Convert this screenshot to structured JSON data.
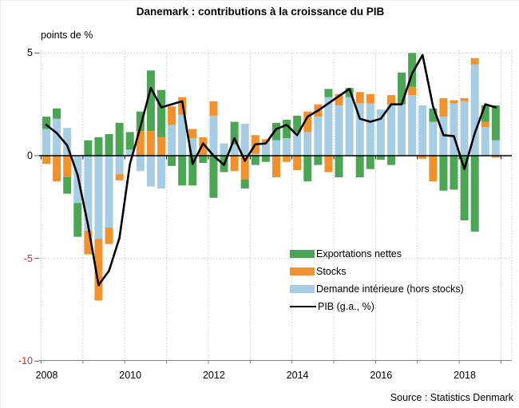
{
  "chart_data": {
    "type": "bar",
    "title": "Danemark : contributions à la croissance du PIB",
    "ylabel": "points de %",
    "source": "Source : Statistics Denmark",
    "frequency": "quarterly",
    "quarters_start": "2008Q1",
    "quarters_end": "2018Q4",
    "x_ticks": [
      "2008",
      "2010",
      "2012",
      "2014",
      "2016",
      "2018"
    ],
    "y_ticks": [
      {
        "label": "5",
        "v": 5,
        "color": "#000000"
      },
      {
        "label": "0",
        "v": 0,
        "color": "#000000"
      },
      {
        "label": "-5",
        "v": -5,
        "color": "#E0282E"
      },
      {
        "label": "-10",
        "v": -10,
        "color": "#E0282E"
      }
    ],
    "ylim": [
      -9.95,
      5.15
    ],
    "grid": "dotted light-gray horizontal at +5/-5 and vertical at each year boundary",
    "legend_position": "inside, lower middle",
    "style": {
      "grid_color": "#c9c9c9",
      "zero_line_color": "#000000",
      "bottom_axis_color": "#7f7f7f",
      "negative_tick_label_color": "#E0282E"
    },
    "series": [
      {
        "name": "Exportations nettes",
        "color": "#4BA554",
        "values": [
          0.6,
          0.5,
          -0.8,
          -1.65,
          0.75,
          0.9,
          1.05,
          1.6,
          0.85,
          0.95,
          2.95,
          2.3,
          -0.5,
          -1.45,
          -1.45,
          -0.35,
          -2.05,
          -0.8,
          1.1,
          -0.45,
          -0.45,
          -0.3,
          0.85,
          0.9,
          0.8,
          -1.25,
          -0.45,
          0.4,
          -1.05,
          0.45,
          -1.05,
          -0.65,
          -0.2,
          -0.45,
          1.55,
          1.65,
          0,
          0.65,
          -1.7,
          -1.65,
          -3.15,
          -3.7,
          0.8,
          1.7
        ]
      },
      {
        "name": "Stocks",
        "color": "#F0912D",
        "values": [
          -0.4,
          -1.25,
          -1.05,
          0,
          -1.15,
          -3,
          -0.8,
          -0.3,
          0,
          1.2,
          1.2,
          0.9,
          0.9,
          0.85,
          0.45,
          0.9,
          0.7,
          0,
          -0.75,
          -1.15,
          0.9,
          0.15,
          -1.05,
          -0.3,
          -0.7,
          1,
          0.6,
          -0.8,
          0.55,
          0,
          0.55,
          0.45,
          0,
          0.45,
          0,
          0.4,
          -0.15,
          -1.25,
          0.9,
          0.15,
          0.15,
          0.3,
          0.25,
          -0.1
        ]
      },
      {
        "name": "Demande intérieure (hors stocks)",
        "color": "#A6CDE3",
        "values": [
          1.3,
          1.8,
          1.35,
          -2.3,
          -3.65,
          -4.05,
          -3.5,
          -0.9,
          0.3,
          -0.75,
          -1.5,
          -1.6,
          1.5,
          2,
          0.85,
          0,
          1.95,
          0.6,
          0.55,
          1.55,
          0.1,
          0.65,
          0.75,
          0.85,
          1.15,
          1.15,
          1.9,
          2.85,
          2.45,
          2.85,
          2.55,
          2.55,
          2.25,
          2.5,
          2.5,
          2.95,
          2.45,
          1.65,
          1.9,
          2.55,
          2.65,
          4.45,
          1.4,
          0.75
        ]
      }
    ],
    "line": {
      "name": "PIB (g.a., %)",
      "color": "#000000",
      "values": [
        1.5,
        1.1,
        0.5,
        -0.95,
        -3.4,
        -6.3,
        -5.6,
        -4,
        -0.4,
        1.4,
        3.3,
        2.35,
        2.5,
        2.65,
        -0.4,
        0.6,
        0,
        -0.45,
        0.85,
        -0.25,
        0.55,
        0.6,
        1.3,
        1.5,
        1,
        1.9,
        2.2,
        2.55,
        2.9,
        3.25,
        1.8,
        1.65,
        1.8,
        2.5,
        2.5,
        4,
        4.9,
        2.4,
        1,
        0.95,
        -0.65,
        1.1,
        2.5,
        2.35
      ]
    }
  }
}
